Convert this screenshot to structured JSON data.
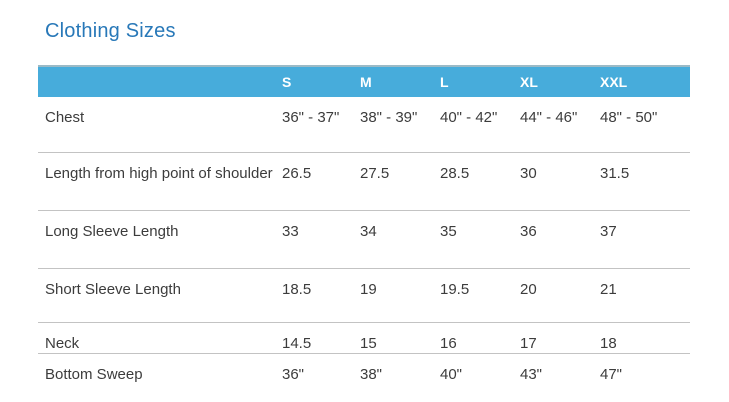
{
  "page": {
    "title": "Clothing Sizes"
  },
  "colors": {
    "header_bg": "#47ACDB",
    "title_blue": "#2878B8",
    "text": "#3C3C3C",
    "divider": "#C3C3C3"
  },
  "chart_data": {
    "type": "table",
    "title": "Clothing Sizes",
    "columns": [
      "",
      "S",
      "M",
      "L",
      "XL",
      "XXL"
    ],
    "rows": [
      {
        "label": "Chest",
        "values": [
          "36\" - 37\"",
          "38\" - 39\"",
          "40\" - 42\"",
          "44\" - 46\"",
          "48\" - 50\""
        ]
      },
      {
        "label": "Length from high point of shoulder",
        "values": [
          "26.5",
          "27.5",
          "28.5",
          "30",
          "31.5"
        ]
      },
      {
        "label": "Long Sleeve Length",
        "values": [
          "33",
          "34",
          "35",
          "36",
          "37"
        ]
      },
      {
        "label": "Short Sleeve Length",
        "values": [
          "18.5",
          "19",
          "19.5",
          "20",
          "21"
        ]
      },
      {
        "label": "Neck",
        "values": [
          "14.5",
          "15",
          "16",
          "17",
          "18"
        ]
      },
      {
        "label": "Bottom Sweep",
        "values": [
          "36\"",
          "38\"",
          "40\"",
          "43\"",
          "47\""
        ]
      }
    ]
  }
}
